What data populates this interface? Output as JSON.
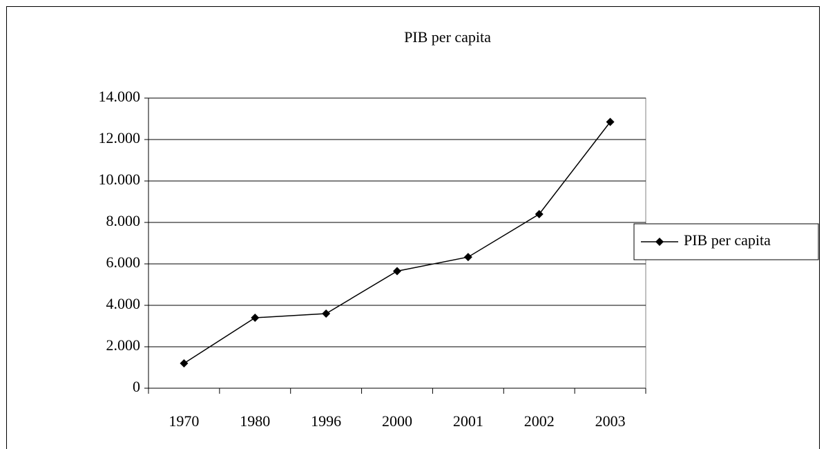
{
  "chart_data": {
    "type": "line",
    "title": "PIB per capita",
    "categories": [
      "1970",
      "1980",
      "1996",
      "2000",
      "2001",
      "2002",
      "2003"
    ],
    "series": [
      {
        "name": "PIB per capita",
        "color": "#000000",
        "values": [
          1200,
          3400,
          3600,
          5650,
          6330,
          8400,
          12850
        ]
      }
    ],
    "ylim": [
      0,
      14000
    ],
    "yticks": [
      0,
      {
        "value": 2000,
        "label": "2.000"
      },
      {
        "value": 4000,
        "label": "4.000"
      },
      {
        "value": 6000,
        "label": "6.000"
      },
      {
        "value": 8000,
        "label": "8.000"
      },
      {
        "value": 10000,
        "label": "10.000"
      },
      {
        "value": 12000,
        "label": "12.000"
      },
      {
        "value": 14000,
        "label": "14.000"
      }
    ],
    "grid": true,
    "legend": "right",
    "marker": "diamond"
  }
}
